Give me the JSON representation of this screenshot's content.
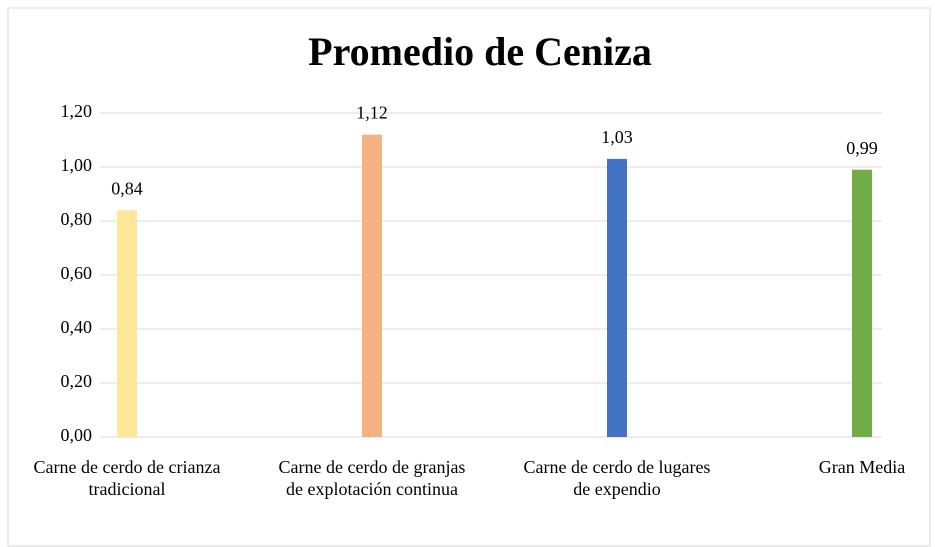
{
  "chart_data": {
    "type": "bar",
    "title": "Promedio de Ceniza",
    "categories": [
      "Carne de cerdo de crianza tradicional",
      "Carne de cerdo de granjas de explotación continua",
      "Carne de cerdo de lugares de expendio",
      "Gran Media"
    ],
    "values": [
      0.84,
      1.12,
      1.03,
      0.99
    ],
    "value_labels": [
      "0,84",
      "1,12",
      "1,03",
      "0,99"
    ],
    "colors": [
      "#ffe699",
      "#f4b183",
      "#4472c4",
      "#70ad47"
    ],
    "ylim": [
      0,
      1.2
    ],
    "yticks": [
      {
        "value": 0,
        "label": "0,00"
      },
      {
        "value": 0.2,
        "label": "0,20"
      },
      {
        "value": 0.4,
        "label": "0,40"
      },
      {
        "value": 0.6,
        "label": "0,60"
      },
      {
        "value": 0.8,
        "label": "0,80"
      },
      {
        "value": 1.0,
        "label": "1,00"
      },
      {
        "value": 1.2,
        "label": "1,20"
      }
    ],
    "grid": true
  }
}
